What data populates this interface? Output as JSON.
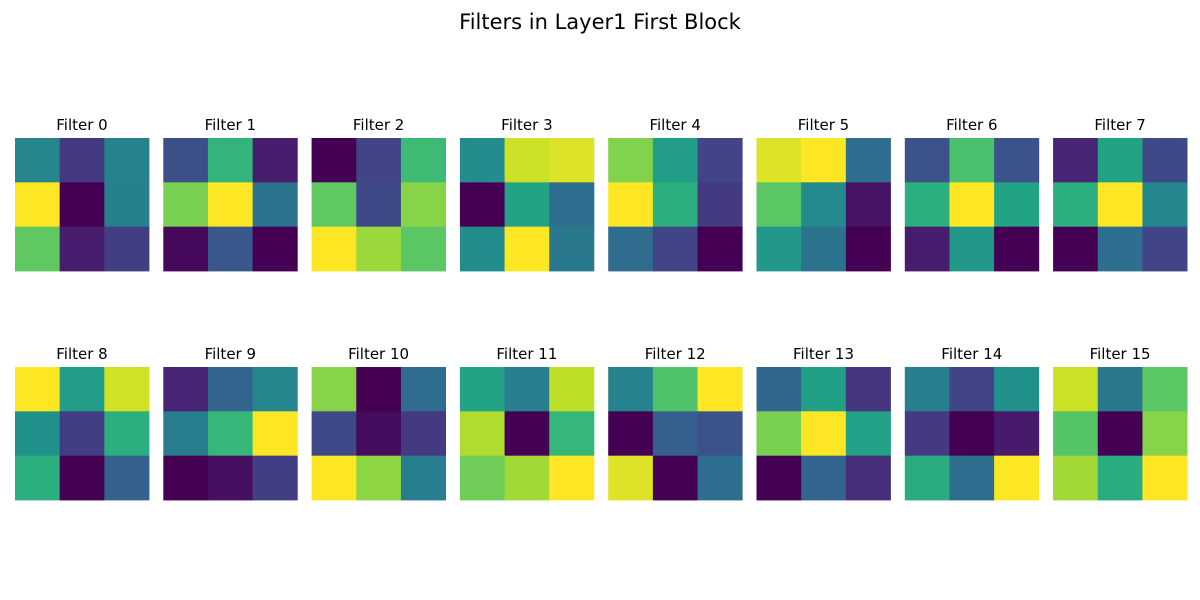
{
  "chart_data": {
    "type": "heatmap",
    "title": "Filters in Layer1 First Block",
    "colormap": "viridis",
    "grid": false,
    "value_range": [
      0,
      1
    ],
    "filters": [
      {
        "title": "Filter 0",
        "values": [
          [
            0.45,
            0.17,
            0.44
          ],
          [
            1.0,
            0.0,
            0.43
          ],
          [
            0.75,
            0.08,
            0.18
          ]
        ]
      },
      {
        "title": "Filter 1",
        "values": [
          [
            0.24,
            0.65,
            0.08
          ],
          [
            0.8,
            1.0,
            0.38
          ],
          [
            0.02,
            0.27,
            0.0
          ]
        ]
      },
      {
        "title": "Filter 2",
        "values": [
          [
            0.0,
            0.2,
            0.68
          ],
          [
            0.75,
            0.22,
            0.82
          ],
          [
            1.0,
            0.85,
            0.74
          ]
        ]
      },
      {
        "title": "Filter 3",
        "values": [
          [
            0.48,
            0.92,
            0.95
          ],
          [
            0.0,
            0.58,
            0.36
          ],
          [
            0.48,
            1.0,
            0.4
          ]
        ]
      },
      {
        "title": "Filter 4",
        "values": [
          [
            0.81,
            0.55,
            0.2
          ],
          [
            1.0,
            0.63,
            0.17
          ],
          [
            0.35,
            0.2,
            0.0
          ]
        ]
      },
      {
        "title": "Filter 5",
        "values": [
          [
            0.95,
            1.0,
            0.36
          ],
          [
            0.74,
            0.47,
            0.05
          ],
          [
            0.53,
            0.38,
            0.0
          ]
        ]
      },
      {
        "title": "Filter 6",
        "values": [
          [
            0.25,
            0.71,
            0.25
          ],
          [
            0.63,
            1.0,
            0.58
          ],
          [
            0.08,
            0.53,
            0.0
          ]
        ]
      },
      {
        "title": "Filter 7",
        "values": [
          [
            0.1,
            0.58,
            0.22
          ],
          [
            0.63,
            1.0,
            0.46
          ],
          [
            0.0,
            0.36,
            0.2
          ]
        ]
      },
      {
        "title": "Filter 8",
        "values": [
          [
            1.0,
            0.55,
            0.93
          ],
          [
            0.5,
            0.18,
            0.63
          ],
          [
            0.63,
            0.0,
            0.31
          ]
        ]
      },
      {
        "title": "Filter 9",
        "values": [
          [
            0.1,
            0.32,
            0.46
          ],
          [
            0.42,
            0.66,
            1.0
          ],
          [
            0.0,
            0.04,
            0.18
          ]
        ]
      },
      {
        "title": "Filter 10",
        "values": [
          [
            0.82,
            0.0,
            0.35
          ],
          [
            0.22,
            0.03,
            0.17
          ],
          [
            1.0,
            0.83,
            0.42
          ]
        ]
      },
      {
        "title": "Filter 11",
        "values": [
          [
            0.58,
            0.42,
            0.9
          ],
          [
            0.88,
            0.0,
            0.66
          ],
          [
            0.78,
            0.86,
            1.0
          ]
        ]
      },
      {
        "title": "Filter 12",
        "values": [
          [
            0.44,
            0.72,
            1.0
          ],
          [
            0.0,
            0.3,
            0.26
          ],
          [
            0.95,
            0.0,
            0.36
          ]
        ]
      },
      {
        "title": "Filter 13",
        "values": [
          [
            0.33,
            0.56,
            0.15
          ],
          [
            0.8,
            1.0,
            0.57
          ],
          [
            0.0,
            0.32,
            0.13
          ]
        ]
      },
      {
        "title": "Filter 14",
        "values": [
          [
            0.42,
            0.2,
            0.5
          ],
          [
            0.17,
            0.0,
            0.07
          ],
          [
            0.62,
            0.36,
            1.0
          ]
        ]
      },
      {
        "title": "Filter 15",
        "values": [
          [
            0.92,
            0.4,
            0.74
          ],
          [
            0.73,
            0.0,
            0.82
          ],
          [
            0.86,
            0.62,
            1.0
          ]
        ]
      }
    ]
  }
}
